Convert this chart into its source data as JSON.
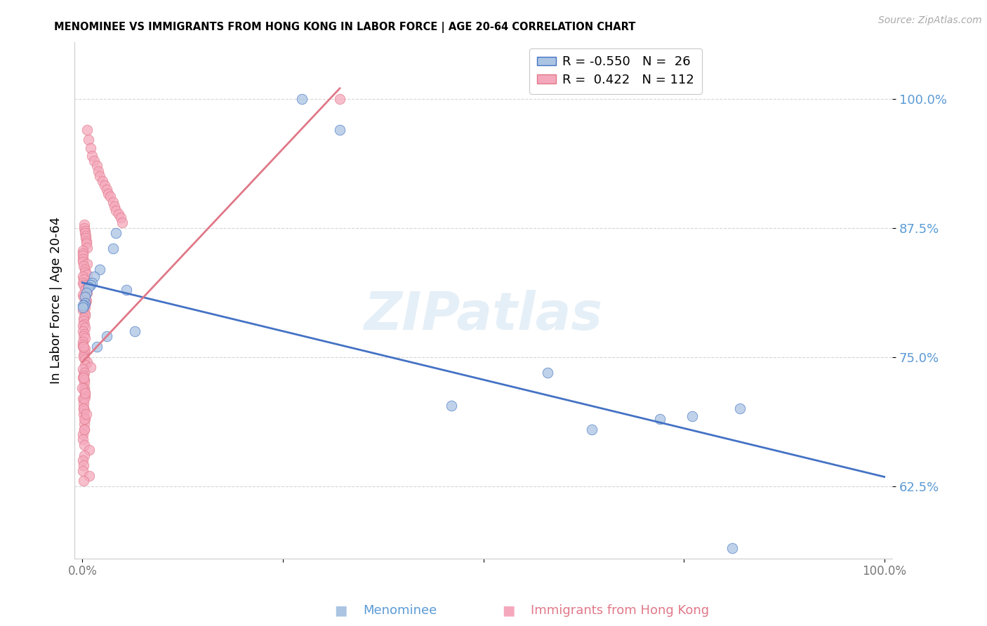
{
  "title": "MENOMINEE VS IMMIGRANTS FROM HONG KONG IN LABOR FORCE | AGE 20-64 CORRELATION CHART",
  "source": "Source: ZipAtlas.com",
  "ylabel": "In Labor Force | Age 20-64",
  "yticks": [
    0.625,
    0.75,
    0.875,
    1.0
  ],
  "xlim": [
    -0.01,
    1.01
  ],
  "ylim": [
    0.555,
    1.055
  ],
  "legend_R1": "-0.550",
  "legend_N1": "26",
  "legend_R2": " 0.422",
  "legend_N2": "112",
  "color_blue": "#aac4e2",
  "color_pink": "#f5a8bc",
  "color_blue_line": "#4472c4",
  "color_pink_line": "#e07888",
  "watermark_text": "ZIPatlas",
  "bottom_label1": "Menominee",
  "bottom_label2": "Immigrants from Hong Kong",
  "tick_color": "#5b9bd5",
  "grid_color": "#cccccc",
  "blue_line_x0": 0.0,
  "blue_line_y0": 0.822,
  "blue_line_x1": 1.0,
  "blue_line_y1": 0.634,
  "pink_line_x0": 0.0,
  "pink_line_y0": 0.745,
  "pink_line_x1": 0.321,
  "pink_line_y1": 1.01,
  "blue_x": [
    0.274,
    0.321,
    0.042,
    0.038,
    0.055,
    0.022,
    0.015,
    0.012,
    0.01,
    0.008,
    0.005,
    0.003,
    0.003,
    0.002,
    0.001,
    0.001,
    0.635,
    0.72,
    0.76,
    0.82,
    0.58,
    0.46,
    0.065,
    0.03,
    0.018,
    0.81
  ],
  "blue_y": [
    1.0,
    0.97,
    0.87,
    0.855,
    0.815,
    0.835,
    0.828,
    0.822,
    0.82,
    0.818,
    0.812,
    0.808,
    0.802,
    0.8,
    0.8,
    0.798,
    0.68,
    0.69,
    0.693,
    0.7,
    0.735,
    0.703,
    0.775,
    0.77,
    0.76,
    0.565
  ],
  "pink_x": [
    0.321,
    0.006,
    0.008,
    0.01,
    0.012,
    0.015,
    0.018,
    0.02,
    0.022,
    0.025,
    0.028,
    0.03,
    0.032,
    0.035,
    0.038,
    0.04,
    0.042,
    0.045,
    0.048,
    0.05,
    0.002,
    0.002,
    0.003,
    0.003,
    0.004,
    0.004,
    0.005,
    0.005,
    0.006,
    0.001,
    0.001,
    0.001,
    0.001,
    0.0,
    0.0,
    0.0,
    0.0,
    0.0,
    0.0,
    0.0,
    0.0,
    0.0,
    0.0,
    0.0,
    0.0,
    0.0,
    0.0,
    0.0,
    0.0,
    0.0,
    0.0,
    0.0,
    0.0,
    0.0,
    0.0,
    0.0,
    0.0,
    0.0,
    0.0,
    0.0,
    0.0,
    0.0,
    0.0,
    0.0,
    0.0,
    0.0,
    0.0,
    0.0,
    0.0,
    0.0,
    0.0,
    0.0,
    0.0,
    0.0,
    0.0,
    0.0,
    0.0,
    0.0,
    0.0,
    0.0,
    0.0,
    0.0,
    0.0,
    0.0,
    0.0,
    0.0,
    0.0,
    0.0,
    0.0,
    0.0,
    0.0,
    0.0,
    0.0,
    0.0,
    0.0,
    0.0,
    0.0,
    0.0,
    0.0,
    0.0,
    0.0,
    0.0,
    0.0,
    0.0,
    0.0,
    0.0,
    0.0,
    0.0,
    0.0,
    0.0,
    0.0,
    0.0
  ],
  "pink_y": [
    1.0,
    0.97,
    0.96,
    0.952,
    0.945,
    0.94,
    0.935,
    0.93,
    0.925,
    0.92,
    0.916,
    0.912,
    0.908,
    0.905,
    0.9,
    0.896,
    0.892,
    0.888,
    0.885,
    0.88,
    0.878,
    0.875,
    0.872,
    0.87,
    0.867,
    0.865,
    0.862,
    0.86,
    0.856,
    0.853,
    0.85,
    0.848,
    0.845,
    0.842,
    0.84,
    0.838,
    0.835,
    0.832,
    0.83,
    0.828,
    0.825,
    0.822,
    0.82,
    0.818,
    0.815,
    0.812,
    0.81,
    0.808,
    0.805,
    0.803,
    0.8,
    0.798,
    0.795,
    0.792,
    0.79,
    0.788,
    0.785,
    0.782,
    0.78,
    0.778,
    0.775,
    0.772,
    0.77,
    0.768,
    0.765,
    0.762,
    0.76,
    0.758,
    0.755,
    0.752,
    0.75,
    0.748,
    0.745,
    0.742,
    0.74,
    0.738,
    0.735,
    0.732,
    0.73,
    0.728,
    0.725,
    0.72,
    0.718,
    0.715,
    0.712,
    0.71,
    0.705,
    0.7,
    0.698,
    0.695,
    0.69,
    0.685,
    0.68,
    0.675,
    0.67,
    0.665,
    0.66,
    0.655,
    0.65,
    0.645,
    0.64,
    0.635,
    0.63,
    0.68,
    0.72,
    0.76,
    0.69,
    0.71,
    0.7,
    0.73,
    0.695,
    0.715
  ]
}
